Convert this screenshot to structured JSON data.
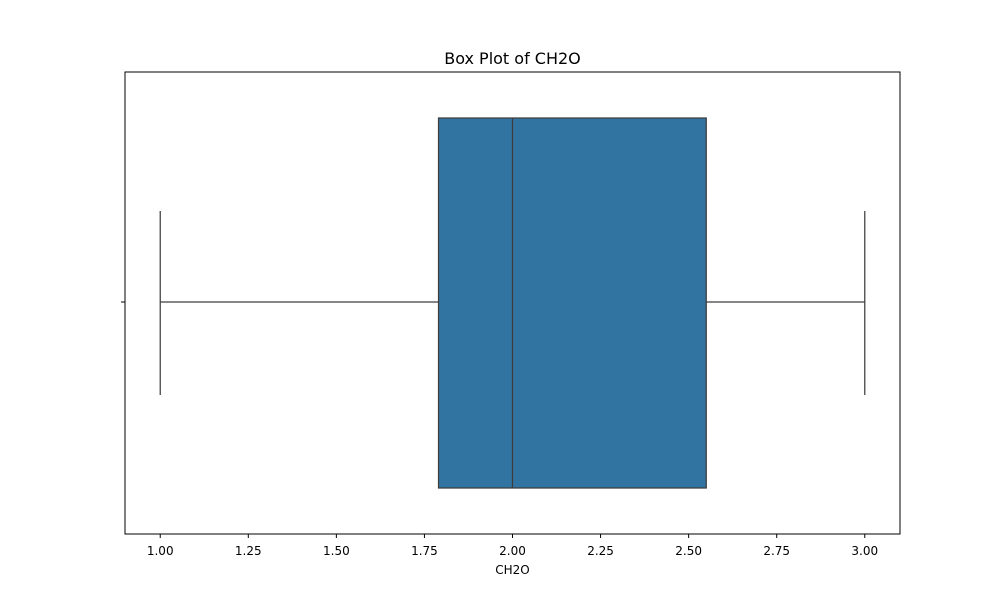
{
  "chart_data": {
    "type": "box",
    "title": "Box Plot of CH2O",
    "xlabel": "CH2O",
    "ylabel": "",
    "xlim": [
      0.9,
      3.1
    ],
    "xticks": [
      1.0,
      1.25,
      1.5,
      1.75,
      2.0,
      2.25,
      2.5,
      2.75,
      3.0
    ],
    "xtick_labels": [
      "1.00",
      "1.25",
      "1.50",
      "1.75",
      "2.00",
      "2.25",
      "2.50",
      "2.75",
      "3.00"
    ],
    "grid": false,
    "orientation": "horizontal",
    "box": {
      "whisker_low": 1.0,
      "q1": 1.79,
      "median": 2.0,
      "q3": 2.55,
      "whisker_high": 3.0
    },
    "colors": {
      "box_fill": "#3274a1",
      "line": "#3d3d3d",
      "axes": "#000000"
    }
  }
}
